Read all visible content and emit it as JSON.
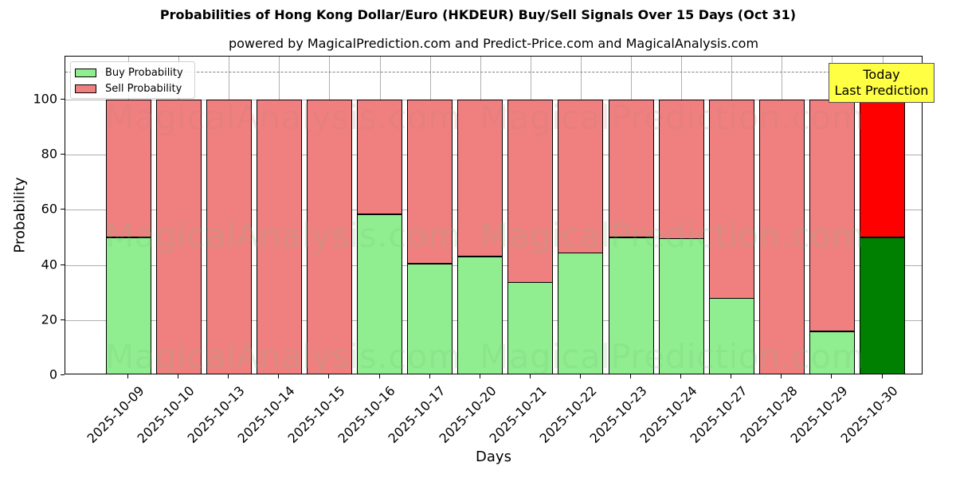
{
  "chart_data": {
    "type": "bar",
    "stacked": true,
    "title": "Probabilities of Hong Kong Dollar/Euro (HKDEUR) Buy/Sell Signals Over 15 Days (Oct 31)",
    "subtitle": "powered by MagicalPrediction.com and Predict-Price.com and MagicalAnalysis.com",
    "xlabel": "Days",
    "ylabel": "Probability",
    "ylim": [
      0,
      115.6
    ],
    "yticks": [
      0,
      20,
      40,
      60,
      80,
      100
    ],
    "grid": true,
    "legend_position": "upper left",
    "categories": [
      "2025-10-09",
      "2025-10-10",
      "2025-10-13",
      "2025-10-14",
      "2025-10-15",
      "2025-10-16",
      "2025-10-17",
      "2025-10-20",
      "2025-10-21",
      "2025-10-22",
      "2025-10-23",
      "2025-10-24",
      "2025-10-27",
      "2025-10-28",
      "2025-10-29",
      "2025-10-30"
    ],
    "series": [
      {
        "name": "Buy Probability",
        "color": "#90ee90",
        "values": [
          50.0,
          0,
          0,
          0,
          0,
          58.4,
          40.5,
          43.1,
          33.8,
          44.5,
          50.0,
          49.7,
          28.0,
          0,
          15.9,
          50.0
        ]
      },
      {
        "name": "Sell Probability",
        "color": "#f08080",
        "values": [
          50.0,
          100,
          100,
          100,
          100,
          41.6,
          59.5,
          56.9,
          66.2,
          55.5,
          50.0,
          50.3,
          72.0,
          100,
          84.1,
          50.0
        ]
      }
    ],
    "highlight": {
      "index": 15,
      "buy_color": "#008000",
      "sell_color": "#ff0000"
    },
    "reference_line": {
      "y": 110,
      "style": "dashed",
      "color": "#808080"
    },
    "annotations": [
      {
        "text": "Today\nLast Prediction",
        "x": "2025-10-30",
        "y": 110,
        "background": "#ffff44"
      }
    ],
    "watermarks": [
      "MagicalAnalysis.com",
      "MagicalPrediction.com"
    ]
  },
  "labels": {
    "title": "Probabilities of Hong Kong Dollar/Euro (HKDEUR) Buy/Sell Signals Over 15 Days (Oct 31)",
    "subtitle": "powered by MagicalPrediction.com and Predict-Price.com and MagicalAnalysis.com",
    "xlabel": "Days",
    "ylabel": "Probability",
    "legend_buy": "Buy Probability",
    "legend_sell": "Sell Probability",
    "annot_line1": "Today",
    "annot_line2": "Last Prediction"
  }
}
